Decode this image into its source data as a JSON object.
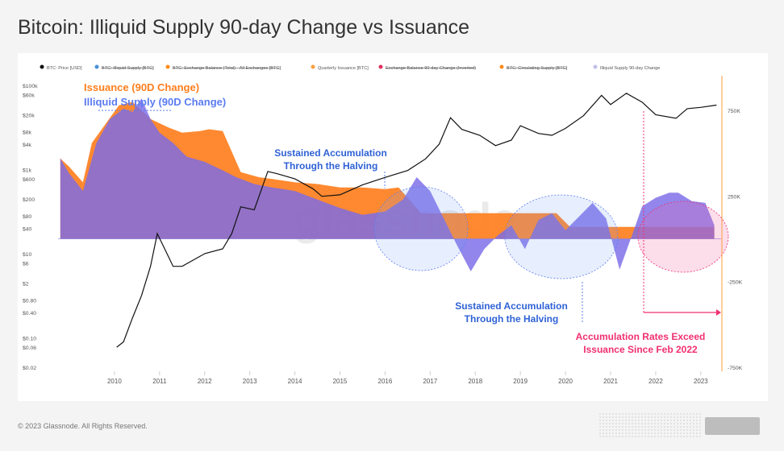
{
  "page_title": "Bitcoin: Illiquid Supply 90-day Change vs Issuance",
  "copyright": "© 2023 Glassnode. All Rights Reserved.",
  "watermark": "glassnode",
  "colors": {
    "price": "#111111",
    "issuance": "#ff7f1e",
    "illiquid": "#7a6be8",
    "illiquid_blue": "#5b7cf2",
    "annotation_blue": "#2f62d6",
    "annotation_pink": "#f0306f"
  },
  "chart_data": {
    "type": "area",
    "title": "",
    "legend_position": "top",
    "legend": [
      {
        "name": "BTC: Price [USD]",
        "color": "#111111",
        "hidden": false
      },
      {
        "name": "BTC: Illiquid Supply [BTC]",
        "color": "#4a90d9",
        "hidden": true
      },
      {
        "name": "BTC: Exchange Balance (Total) - All Exchanges [BTC]",
        "color": "#ff8c1a",
        "hidden": true
      },
      {
        "name": "Quarterly Issuance [BTC]",
        "color": "#ff9f40",
        "hidden": false
      },
      {
        "name": "Exchange Balance 90-day Change (Inverted)",
        "color": "#e0305a",
        "hidden": true
      },
      {
        "name": "BTC: Circulating Supply [BTC]",
        "color": "#ff8c1a",
        "hidden": true
      },
      {
        "name": "Illiquid Supply 90-day Change",
        "color": "#c0c0e8",
        "hidden": false
      }
    ],
    "x_ticks": [
      "2010",
      "2011",
      "2012",
      "2013",
      "2014",
      "2015",
      "2016",
      "2017",
      "2018",
      "2019",
      "2020",
      "2021",
      "2022",
      "2023"
    ],
    "left_axis": {
      "scale": "log",
      "unit": "USD",
      "ticks": [
        "$100k",
        "$60k",
        "$20k",
        "$8k",
        "$4k",
        "$1k",
        "$600",
        "$200",
        "$80",
        "$40",
        "$10",
        "$6",
        "$2",
        "$0.80",
        "$0.40",
        "$0.10",
        "$0.06",
        "$0.02"
      ]
    },
    "right_axis": {
      "scale": "linear",
      "unit": "BTC",
      "ticks": [
        "750K",
        "250K",
        "-250K",
        "-750K"
      ],
      "range": [
        -750000,
        1000000
      ]
    },
    "series": [
      {
        "name": "Quarterly Issuance [BTC]",
        "x": [
          2009.3,
          2009.5,
          2009.8,
          2010.0,
          2010.3,
          2010.6,
          2010.9,
          2011.3,
          2011.7,
          2012.0,
          2012.4,
          2012.6,
          2012.9,
          2013.3,
          2013.7,
          2014.0,
          2014.5,
          2015.0,
          2015.5,
          2016.0,
          2016.5,
          2016.8,
          2017.3,
          2017.8,
          2018.3,
          2018.8,
          2019.3,
          2019.8,
          2020.3,
          2020.6,
          2021.0,
          2021.5,
          2022.0,
          2022.5,
          2023.0,
          2023.5,
          2023.8
        ],
        "y": [
          470000,
          420000,
          330000,
          560000,
          670000,
          780000,
          800000,
          700000,
          650000,
          620000,
          630000,
          640000,
          630000,
          390000,
          360000,
          350000,
          330000,
          320000,
          300000,
          300000,
          290000,
          300000,
          150000,
          150000,
          150000,
          150000,
          150000,
          150000,
          150000,
          70000,
          70000,
          70000,
          70000,
          70000,
          70000,
          70000,
          70000
        ]
      },
      {
        "name": "Illiquid Supply 90-day Change",
        "x": [
          2009.3,
          2009.5,
          2009.8,
          2010.1,
          2010.4,
          2010.7,
          2010.9,
          2011.1,
          2011.3,
          2011.5,
          2011.8,
          2012.1,
          2012.5,
          2012.9,
          2013.2,
          2013.6,
          2014.0,
          2014.5,
          2015.0,
          2015.5,
          2016.0,
          2016.5,
          2016.9,
          2017.2,
          2017.5,
          2017.8,
          2018.1,
          2018.4,
          2018.7,
          2019.0,
          2019.3,
          2019.6,
          2019.9,
          2020.2,
          2020.5,
          2020.8,
          2021.1,
          2021.4,
          2021.7,
          2022.0,
          2022.2,
          2022.5,
          2022.8,
          2023.0,
          2023.3,
          2023.6,
          2023.8
        ],
        "y": [
          470000,
          380000,
          280000,
          560000,
          700000,
          760000,
          740000,
          820000,
          700000,
          620000,
          560000,
          480000,
          450000,
          400000,
          360000,
          320000,
          300000,
          280000,
          230000,
          180000,
          140000,
          160000,
          230000,
          360000,
          280000,
          120000,
          -40000,
          -190000,
          -60000,
          20000,
          80000,
          -60000,
          110000,
          150000,
          50000,
          130000,
          210000,
          120000,
          -180000,
          40000,
          190000,
          240000,
          270000,
          270000,
          220000,
          210000,
          80000
        ]
      },
      {
        "name": "BTC: Price [USD]",
        "x": [
          2010.55,
          2010.7,
          2010.9,
          2011.1,
          2011.3,
          2011.45,
          2011.6,
          2011.8,
          2012.0,
          2012.5,
          2012.9,
          2013.1,
          2013.3,
          2013.6,
          2013.9,
          2014.1,
          2014.5,
          2014.9,
          2015.1,
          2015.5,
          2016.0,
          2016.5,
          2017.0,
          2017.4,
          2017.7,
          2017.95,
          2018.2,
          2018.6,
          2018.95,
          2019.3,
          2019.5,
          2019.9,
          2020.2,
          2020.5,
          2020.9,
          2021.3,
          2021.5,
          2021.85,
          2022.2,
          2022.5,
          2022.95,
          2023.2,
          2023.5,
          2023.85
        ],
        "y": [
          0.06,
          0.08,
          0.3,
          1,
          5,
          30,
          14,
          5,
          5,
          10,
          13,
          30,
          130,
          110,
          900,
          800,
          600,
          350,
          230,
          250,
          430,
          650,
          950,
          1800,
          4000,
          17000,
          9000,
          6500,
          3700,
          5000,
          11000,
          7200,
          6500,
          9500,
          19000,
          58000,
          35000,
          65000,
          40000,
          20000,
          16500,
          28000,
          30000,
          34000
        ]
      }
    ],
    "annotations": [
      {
        "text": "Issuance (90D Change)",
        "color": "#ff7f1e"
      },
      {
        "text": "Illiquid Supply (90D Change)",
        "color": "#5b7cf2"
      },
      {
        "text": "Sustained Accumulation Through the Halving",
        "lines": [
          "Sustained Accumulation",
          "Through the Halving"
        ],
        "color": "#2f62d6"
      },
      {
        "text": "Sustained Accumulation Through the Halving",
        "lines": [
          "Sustained Accumulation",
          "Through the Halving"
        ],
        "color": "#2f62d6"
      },
      {
        "text": "Accumulation Rates Exceed Issuance Since Feb 2022",
        "lines": [
          "Accumulation Rates Exceed",
          "Issuance Since Feb 2022"
        ],
        "color": "#f0306f"
      }
    ]
  }
}
